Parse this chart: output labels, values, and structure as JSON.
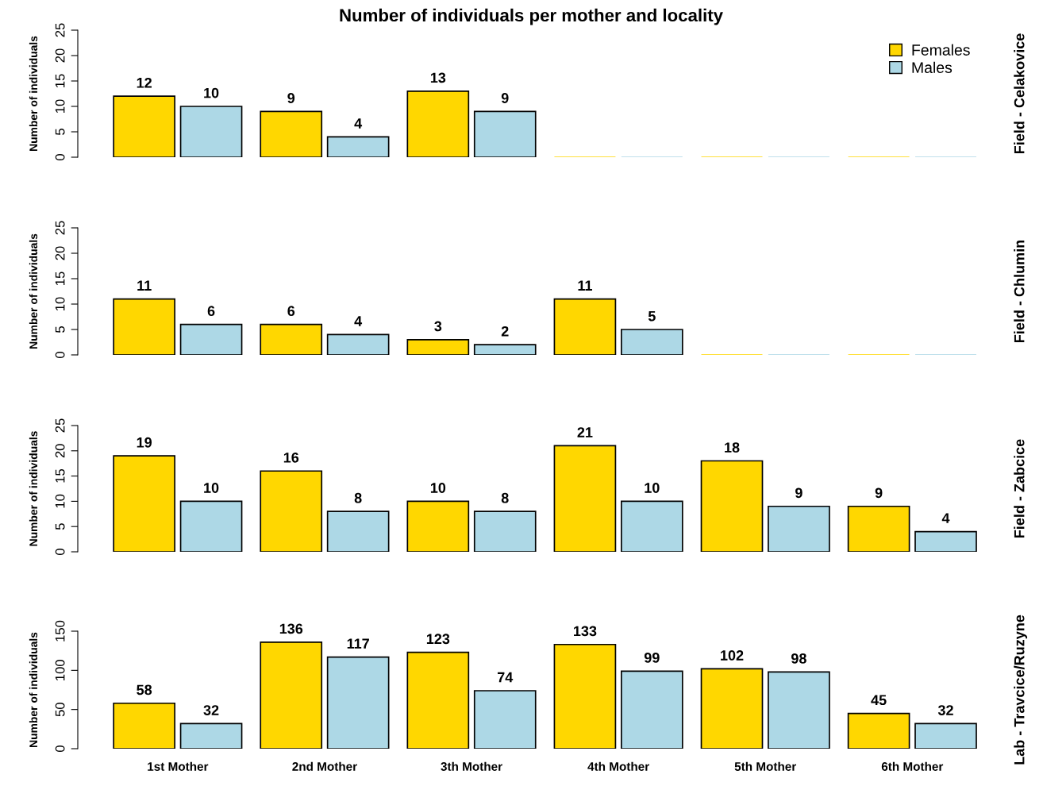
{
  "chart_data": [
    {
      "type": "bar",
      "title": "Number of individuals per mother and locality",
      "ylabel": "Number of individuals",
      "y2label": "Field - Celakovice",
      "categories": [
        null,
        null,
        null,
        null,
        null,
        null
      ],
      "ylim": [
        0,
        25
      ],
      "yticks": [
        0,
        5,
        10,
        15,
        20,
        25
      ],
      "legend": "top right",
      "grid": false,
      "series": [
        {
          "name": "Females",
          "color": "#ffd700",
          "values": [
            12,
            9,
            13,
            0,
            0,
            0
          ],
          "value_labels": [
            "12",
            "9",
            "13",
            null,
            null,
            null
          ]
        },
        {
          "name": "Males",
          "color": "#add8e6",
          "values": [
            10,
            4,
            9,
            0,
            0,
            0
          ],
          "value_labels": [
            "10",
            "4",
            "9",
            null,
            null,
            null
          ]
        }
      ]
    },
    {
      "type": "bar",
      "ylabel": "Number of individuals",
      "y2label": "Field - Chlumin",
      "categories": [
        null,
        null,
        null,
        null,
        null,
        null
      ],
      "ylim": [
        0,
        25
      ],
      "yticks": [
        0,
        5,
        10,
        15,
        20,
        25
      ],
      "grid": false,
      "series": [
        {
          "color": "#ffd700",
          "values": [
            11,
            6,
            3,
            11,
            0,
            0
          ],
          "value_labels": [
            "11",
            "6",
            "3",
            "11",
            null,
            null
          ]
        },
        {
          "color": "#add8e6",
          "values": [
            6,
            4,
            2,
            5,
            0,
            0
          ],
          "value_labels": [
            "6",
            "4",
            "2",
            "5",
            null,
            null
          ]
        }
      ]
    },
    {
      "type": "bar",
      "ylabel": "Number of individuals",
      "y2label": "Field - Zabcice",
      "categories": [
        null,
        null,
        null,
        null,
        null,
        null
      ],
      "ylim": [
        0,
        25
      ],
      "yticks": [
        0,
        5,
        10,
        15,
        20,
        25
      ],
      "grid": false,
      "data_labels": true,
      "series": [
        {
          "color": "#ffd700",
          "values": [
            19,
            16,
            10,
            21,
            18,
            9
          ]
        },
        {
          "color": "#add8e6",
          "values": [
            10,
            8,
            8,
            10,
            9,
            4
          ]
        }
      ]
    },
    {
      "type": "bar",
      "ylabel": "Number of individuals",
      "y2label": "Lab - Travcice/Ruzyne",
      "categories": [
        "1st Mother",
        "2nd Mother",
        "3th Mother",
        "4th Mother",
        "5th Mother",
        "6th Mother"
      ],
      "ylim": [
        0,
        150
      ],
      "yticks": [
        0,
        50,
        100,
        150
      ],
      "grid": false,
      "data_labels": true,
      "series": [
        {
          "color": "#ffd700",
          "values": [
            58,
            136,
            123,
            133,
            102,
            45
          ]
        },
        {
          "color": "#add8e6",
          "values": [
            32,
            117,
            74,
            99,
            98,
            32
          ]
        }
      ]
    }
  ]
}
